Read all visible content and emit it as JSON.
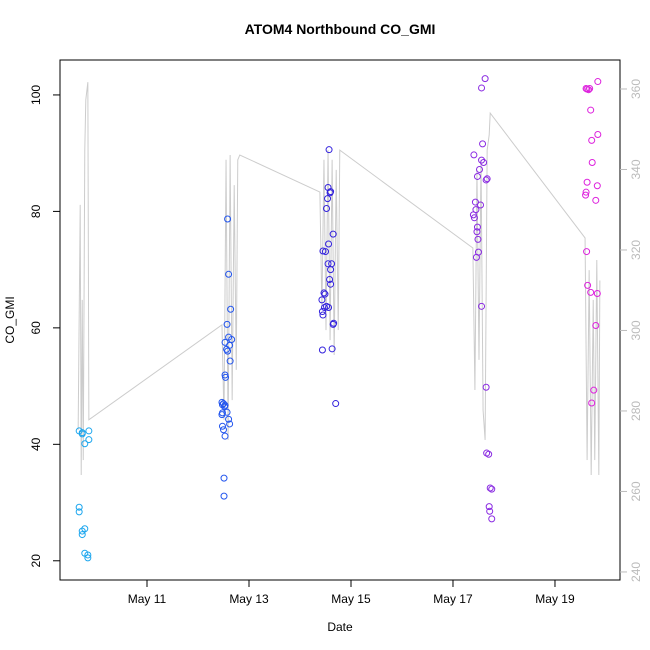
{
  "chart_data": {
    "type": "scatter",
    "title": "ATOM4 Northbound CO_GMI",
    "x_label": "Date",
    "y_label": "CO_GMI",
    "xlim": [
      9.294,
      20.275
    ],
    "ylim": [
      16.7,
      106.0
    ],
    "y2lim": [
      238.0,
      367.2
    ],
    "xticks": [
      {
        "value": 11,
        "label": "May 11"
      },
      {
        "value": 13,
        "label": "May 13"
      },
      {
        "value": 15,
        "label": "May 15"
      },
      {
        "value": 17,
        "label": "May 17"
      },
      {
        "value": 19,
        "label": "May 19"
      }
    ],
    "yticks": [
      20,
      40,
      60,
      80,
      100
    ],
    "y2ticks": [
      240,
      260,
      280,
      300,
      320,
      340,
      360
    ],
    "series": [
      {
        "type": "line",
        "axis": "y2",
        "color": "#cccccc",
        "x": [
          9.65,
          9.69,
          9.71,
          9.73,
          9.75,
          9.78,
          9.8,
          9.84,
          9.86,
          12.47,
          12.51,
          12.55,
          12.59,
          12.63,
          12.67,
          12.71,
          12.75,
          12.78,
          12.82,
          14.39,
          14.43,
          14.47,
          14.51,
          14.55,
          14.59,
          14.63,
          14.67,
          14.71,
          14.75,
          14.78,
          17.39,
          17.43,
          17.47,
          17.51,
          17.55,
          17.59,
          17.63,
          17.67,
          17.71,
          17.73,
          19.59,
          19.63,
          19.67,
          19.71,
          19.75,
          19.78,
          19.82,
          19.86,
          19.88
        ],
        "values": [
          275.3,
          331.2,
          264.1,
          307.6,
          267.8,
          344.8,
          357.3,
          361.7,
          277.8,
          301.4,
          277.8,
          342.4,
          272.8,
          343.6,
          282.7,
          336.1,
          290.2,
          342.4,
          343.6,
          334.4,
          305.1,
          342.4,
          300.1,
          344.8,
          297.6,
          342.4,
          293.9,
          339.9,
          300.1,
          344.8,
          320.5,
          285.2,
          339.9,
          292.7,
          342.4,
          280.2,
          272.8,
          344.8,
          348.6,
          354.0,
          323.0,
          267.8,
          315.0,
          264.1,
          307.6,
          267.8,
          317.5,
          264.1,
          312.4
        ]
      },
      {
        "type": "points",
        "color": "#1ca6ee",
        "x": [
          9.67,
          9.67,
          9.67,
          9.73,
          9.73,
          9.73,
          9.73,
          9.78,
          9.78,
          9.78,
          9.84,
          9.84,
          9.86,
          9.86
        ],
        "values": [
          42.3,
          29.2,
          28.4,
          42.0,
          41.8,
          25.1,
          24.5,
          40.1,
          25.5,
          21.3,
          20.5,
          21.0,
          40.8,
          42.3
        ]
      },
      {
        "type": "points",
        "color": "#2255ee",
        "x": [
          12.47,
          12.48,
          12.48,
          12.47,
          12.48,
          12.5,
          12.53,
          12.51,
          12.51,
          12.5,
          12.52,
          12.53,
          12.53,
          12.54,
          12.53,
          12.56,
          12.57,
          12.58,
          12.6,
          12.58,
          12.6,
          12.62,
          12.63,
          12.64,
          12.66,
          12.6,
          12.62,
          12.57
        ],
        "values": [
          47.2,
          46.8,
          45.4,
          45.1,
          43.1,
          42.5,
          41.4,
          34.2,
          31.1,
          47.0,
          46.5,
          46.7,
          51.9,
          51.5,
          57.5,
          56.3,
          60.6,
          78.7,
          69.2,
          56.0,
          58.4,
          57.0,
          54.3,
          63.2,
          58.0,
          44.3,
          43.5,
          45.5
        ]
      },
      {
        "type": "points",
        "color": "#3322dd",
        "x": [
          14.43,
          14.45,
          14.44,
          14.44,
          14.45,
          14.47,
          14.49,
          14.48,
          14.52,
          14.55,
          14.54,
          14.57,
          14.59,
          14.6,
          14.56,
          14.55,
          14.58,
          14.6,
          14.52,
          14.56,
          14.6,
          14.65,
          14.66,
          14.63,
          14.7,
          14.65,
          14.5,
          14.62
        ],
        "values": [
          64.8,
          62.2,
          62.8,
          56.2,
          73.2,
          66.0,
          65.8,
          63.5,
          80.5,
          84.1,
          82.2,
          90.6,
          83.2,
          83.4,
          74.4,
          71.0,
          68.3,
          70.0,
          63.7,
          63.5,
          67.5,
          60.6,
          60.8,
          56.4,
          47.0,
          76.1,
          73.1,
          71.0
        ]
      },
      {
        "type": "points",
        "color": "#8a2be2",
        "x": [
          17.41,
          17.4,
          17.42,
          17.44,
          17.45,
          17.47,
          17.48,
          17.46,
          17.49,
          17.5,
          17.56,
          17.48,
          17.52,
          17.56,
          17.6,
          17.58,
          17.63,
          17.56,
          17.67,
          17.65,
          17.54,
          17.65,
          17.66,
          17.7,
          17.73,
          17.76,
          17.71,
          17.72,
          17.76
        ],
        "values": [
          89.7,
          79.4,
          78.9,
          81.6,
          80.3,
          76.5,
          77.3,
          72.1,
          75.2,
          73.0,
          63.7,
          86.0,
          87.2,
          88.8,
          88.4,
          91.6,
          102.8,
          101.2,
          85.6,
          85.4,
          81.1,
          49.8,
          38.5,
          38.3,
          32.5,
          32.3,
          29.3,
          28.5,
          27.2
        ]
      },
      {
        "type": "points",
        "color": "#dd22dd",
        "x": [
          19.61,
          19.63,
          19.66,
          19.68,
          19.84,
          19.7,
          19.72,
          19.84,
          19.73,
          19.63,
          19.61,
          19.6,
          19.83,
          19.8,
          19.62,
          19.64,
          19.7,
          19.83,
          19.8,
          19.76,
          19.72
        ],
        "values": [
          101.1,
          101.0,
          100.9,
          101.1,
          102.3,
          97.4,
          92.2,
          93.2,
          88.4,
          85.0,
          83.3,
          82.8,
          84.4,
          81.9,
          73.1,
          67.3,
          66.1,
          65.9,
          60.4,
          49.3,
          47.1
        ]
      }
    ]
  }
}
